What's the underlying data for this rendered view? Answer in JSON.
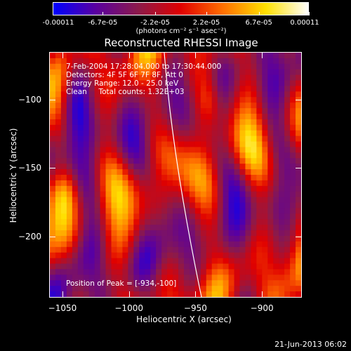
{
  "colorbar": {
    "ticks": [
      "-0.00011",
      "-6.7e-05",
      "-2.2e-05",
      "2.2e-05",
      "6.7e-05",
      "0.00011"
    ],
    "tick_values": [
      -0.00011,
      -6.7e-05,
      -2.2e-05,
      2.2e-05,
      6.7e-05,
      0.00011
    ],
    "unit_label": "(photons cm⁻² s⁻¹ asec⁻²)",
    "colors": [
      "#0000ff",
      "#5a00a0",
      "#8c1a4a",
      "#e00000",
      "#ff7000",
      "#ffe000",
      "#ffffff"
    ]
  },
  "info": {
    "time_range": "7-Feb-2004 17:28:04.000 to 17:30:44.000",
    "detectors": "Detectors: 4F 5F 6F 7F 8F, Att 0",
    "energy": "Energy Range: 12.0 - 25.0 keV",
    "clean": "Clean     Total counts: 1.32E+03",
    "peak": "Position of Peak = [-934,-100]"
  },
  "timestamp": "21-Jun-2013 06:02",
  "chart_data": {
    "type": "heatmap",
    "title": "Reconstructed RHESSI Image",
    "xlabel": "Heliocentric X (arcsec)",
    "ylabel": "Heliocentric Y (arcsec)",
    "xlim": [
      -1060,
      -870
    ],
    "ylim": [
      -245,
      -65
    ],
    "xticks": [
      -1050,
      -1000,
      -950,
      -900
    ],
    "yticks": [
      -100,
      -150,
      -200
    ],
    "xtick_labels": [
      "−1050",
      "−1000",
      "−950",
      "−900"
    ],
    "ytick_labels": [
      "−100",
      "−150",
      "−200"
    ],
    "value_range": [
      -0.00011,
      0.00011
    ],
    "peak_position": [
      -934,
      -100
    ]
  }
}
